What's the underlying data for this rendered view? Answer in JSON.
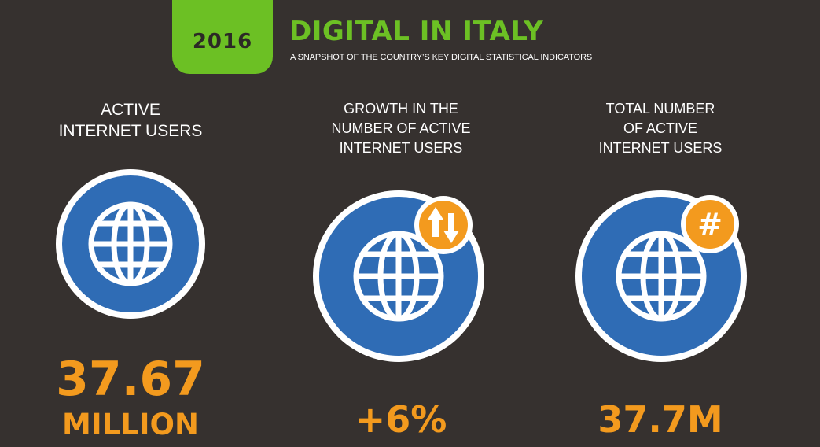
{
  "header": {
    "year": "2016",
    "title": "DIGITAL IN ITALY",
    "subtitle": "A SNAPSHOT OF THE COUNTRY’S KEY DIGITAL STATISTICAL INDICATORS"
  },
  "colors": {
    "background": "#36312f",
    "accent_green": "#6cc024",
    "accent_orange": "#f39a1e",
    "globe_blue": "#2f6cb5"
  },
  "stats": [
    {
      "label": "ACTIVE\nINTERNET USERS",
      "icon": "globe-icon",
      "value_line1": "37.67",
      "value_line2": "MILLION"
    },
    {
      "label": "GROWTH IN THE\nNUMBER OF ACTIVE\nINTERNET USERS",
      "icon": "globe-icon",
      "badge_icon": "up-down-arrows-icon",
      "value": "+6%"
    },
    {
      "label": "TOTAL NUMBER\nOF ACTIVE\nINTERNET USERS",
      "icon": "globe-icon",
      "badge_icon": "hash-icon",
      "badge_text": "#",
      "value": "37.7M"
    }
  ]
}
